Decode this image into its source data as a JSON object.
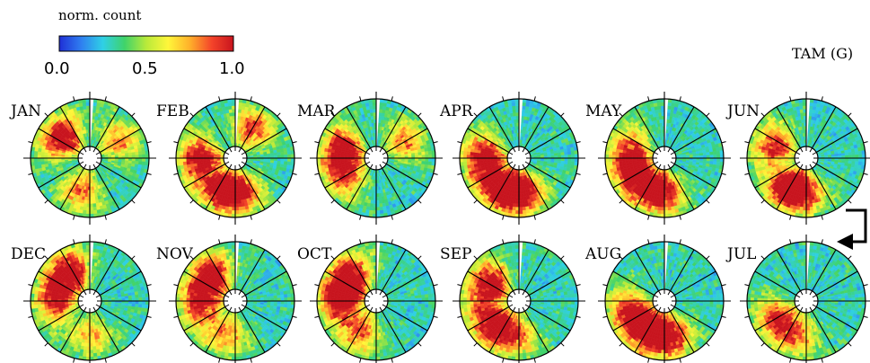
{
  "chart_data": {
    "type": "heatmap",
    "projection": "polar",
    "station_label": "TAM (G)",
    "colorbar": {
      "title": "norm. count",
      "range": [
        0.0,
        1.0
      ],
      "ticks": [
        "0.0",
        "0.5",
        "1.0"
      ],
      "colormap": [
        "#1f2fd6",
        "#2f7ef0",
        "#2fd0e6",
        "#3fd36a",
        "#b9ea3a",
        "#fff63a",
        "#ffb02a",
        "#f4442a",
        "#c8141e"
      ]
    },
    "panel_order_note": "top row JAN to JUN left to right, bottom row JUL to DEC right to left",
    "panels": [
      {
        "month": "JAN",
        "row": 0,
        "col": 0,
        "hotspots": [
          {
            "sector": 20.5,
            "level": 0.9
          },
          {
            "sector": 13,
            "level": 0.55
          },
          {
            "sector": 4,
            "level": 0.5
          }
        ]
      },
      {
        "month": "FEB",
        "row": 0,
        "col": 1,
        "hotspots": [
          {
            "sector": 18,
            "level": 0.85
          },
          {
            "sector": 14,
            "level": 0.7
          },
          {
            "sector": 11.5,
            "level": 0.75
          },
          {
            "sector": 2,
            "level": 0.6
          }
        ]
      },
      {
        "month": "MAR",
        "row": 0,
        "col": 2,
        "hotspots": [
          {
            "sector": 19,
            "level": 0.85
          },
          {
            "sector": 16,
            "level": 0.6
          },
          {
            "sector": 4,
            "level": 0.5
          }
        ]
      },
      {
        "month": "APR",
        "row": 0,
        "col": 3,
        "hotspots": [
          {
            "sector": 18,
            "level": 0.9
          },
          {
            "sector": 14,
            "level": 0.9
          },
          {
            "sector": 11.5,
            "level": 0.8
          }
        ]
      },
      {
        "month": "MAY",
        "row": 0,
        "col": 4,
        "hotspots": [
          {
            "sector": 16,
            "level": 0.85
          },
          {
            "sector": 12.5,
            "level": 0.95
          },
          {
            "sector": 19,
            "level": 0.6
          }
        ]
      },
      {
        "month": "JUN",
        "row": 0,
        "col": 5,
        "hotspots": [
          {
            "sector": 14,
            "level": 0.95
          },
          {
            "sector": 19.5,
            "level": 0.7
          },
          {
            "sector": 12,
            "level": 0.5
          }
        ]
      },
      {
        "month": "JUL",
        "row": 1,
        "col": 5,
        "hotspots": [
          {
            "sector": 16,
            "level": 0.6
          },
          {
            "sector": 13,
            "level": 0.5
          }
        ]
      },
      {
        "month": "AUG",
        "row": 1,
        "col": 4,
        "hotspots": [
          {
            "sector": 14,
            "level": 0.85
          },
          {
            "sector": 11.5,
            "level": 0.8
          },
          {
            "sector": 17,
            "level": 0.7
          }
        ]
      },
      {
        "month": "SEP",
        "row": 1,
        "col": 3,
        "hotspots": [
          {
            "sector": 20,
            "level": 0.9
          },
          {
            "sector": 15.5,
            "level": 0.85
          },
          {
            "sector": 12.5,
            "level": 0.6
          }
        ]
      },
      {
        "month": "OCT",
        "row": 1,
        "col": 2,
        "hotspots": [
          {
            "sector": 18.5,
            "level": 0.95
          },
          {
            "sector": 21,
            "level": 0.75
          },
          {
            "sector": 14,
            "level": 0.6
          }
        ]
      },
      {
        "month": "NOV",
        "row": 1,
        "col": 1,
        "hotspots": [
          {
            "sector": 21,
            "level": 0.95
          },
          {
            "sector": 17.5,
            "level": 0.7
          },
          {
            "sector": 13,
            "level": 0.5
          }
        ]
      },
      {
        "month": "DEC",
        "row": 1,
        "col": 0,
        "hotspots": [
          {
            "sector": 21.5,
            "level": 0.95
          },
          {
            "sector": 18,
            "level": 0.7
          },
          {
            "sector": 12,
            "level": 0.45
          }
        ]
      }
    ]
  }
}
